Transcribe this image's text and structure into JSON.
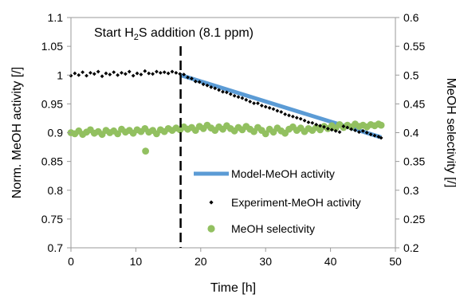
{
  "chart_data": {
    "type": "scatter",
    "xlabel": "Time [h]",
    "ylabel_left": "Norm. MeOH activity [/]",
    "ylabel_right": "MeOH selectivity [/]",
    "xlim": [
      0,
      50
    ],
    "ylim_left": [
      0.7,
      1.1
    ],
    "ylim_right": [
      0.2,
      0.6
    ],
    "x_ticks": [
      "0",
      "10",
      "20",
      "30",
      "40",
      "50"
    ],
    "y_ticks_left": [
      "0.7",
      "0.75",
      "0.8",
      "0.85",
      "0.9",
      "0.95",
      "1",
      "1.05",
      "1.1"
    ],
    "y_ticks_right": [
      "0.2",
      "0.25",
      "0.3",
      "0.35",
      "0.4",
      "0.45",
      "0.5",
      "0.55",
      "0.6"
    ],
    "grid": false,
    "legend_position": "bottom-right",
    "annotation": {
      "text_before": "Start H",
      "subscript": "2",
      "text_after": "S addition (8.1 ppm)",
      "x": 16.9
    },
    "series": [
      {
        "name": "Model-MeOH activity",
        "type": "line",
        "axis": "left",
        "color": "#5b9bd5",
        "x": [
          16.9,
          47.8
        ],
        "y": [
          1.0,
          0.892
        ]
      },
      {
        "name": "Experiment-MeOH activity",
        "type": "scatter",
        "marker": "diamond",
        "axis": "left",
        "color": "#000000",
        "x": [
          0.0,
          0.6,
          1.2,
          1.8,
          2.4,
          3.0,
          3.6,
          4.2,
          4.8,
          5.4,
          6.0,
          6.6,
          7.2,
          7.8,
          8.4,
          9.0,
          9.6,
          10.2,
          10.8,
          11.4,
          12.0,
          12.6,
          13.2,
          13.8,
          14.4,
          15.0,
          15.6,
          16.2,
          16.8,
          17.4,
          18.0,
          18.6,
          19.2,
          19.8,
          20.4,
          21.0,
          21.6,
          22.2,
          22.8,
          23.4,
          24.0,
          24.6,
          25.2,
          25.8,
          26.4,
          27.0,
          27.6,
          28.2,
          28.8,
          29.4,
          30.0,
          30.6,
          31.2,
          31.8,
          32.4,
          33.0,
          33.6,
          34.2,
          34.8,
          35.4,
          36.0,
          36.6,
          37.2,
          37.8,
          38.4,
          39.0,
          39.6,
          40.2,
          40.8,
          41.4,
          42.0,
          42.6,
          43.2,
          43.8,
          44.4,
          45.0,
          45.6,
          46.2,
          46.8,
          47.4,
          47.8
        ],
        "y": [
          0.999,
          1.003,
          1.0,
          1.005,
          0.999,
          1.004,
          1.002,
          1.006,
          0.998,
          1.003,
          1.001,
          1.005,
          1.0,
          1.004,
          1.002,
          1.006,
          0.999,
          1.003,
          1.001,
          1.007,
          1.003,
          1.002,
          1.006,
          1.004,
          1.005,
          1.003,
          1.006,
          1.004,
          1.002,
          1.001,
          0.996,
          0.994,
          0.989,
          0.988,
          0.984,
          0.982,
          0.979,
          0.977,
          0.974,
          0.971,
          0.97,
          0.967,
          0.964,
          0.962,
          0.96,
          0.957,
          0.954,
          0.951,
          0.951,
          0.947,
          0.945,
          0.943,
          0.941,
          0.938,
          0.936,
          0.932,
          0.93,
          0.928,
          0.926,
          0.924,
          0.921,
          0.918,
          0.917,
          0.914,
          0.912,
          0.91,
          0.907,
          0.905,
          0.903,
          0.901,
          0.911,
          0.909,
          0.906,
          0.904,
          0.901,
          0.903,
          0.9,
          0.897,
          0.895,
          0.893,
          0.891
        ]
      },
      {
        "name": "MeOH selectivity",
        "type": "scatter",
        "marker": "circle",
        "axis": "right",
        "color": "#92c060",
        "x": [
          0.0,
          0.6,
          1.2,
          1.8,
          2.4,
          3.0,
          3.6,
          4.2,
          4.8,
          5.4,
          6.0,
          6.6,
          7.2,
          7.8,
          8.4,
          9.0,
          9.6,
          10.2,
          10.8,
          11.4,
          12.0,
          12.6,
          13.2,
          13.8,
          14.4,
          15.0,
          15.6,
          16.2,
          16.8,
          17.4,
          18.0,
          18.6,
          19.2,
          19.8,
          20.4,
          21.0,
          21.6,
          22.2,
          22.8,
          23.4,
          24.0,
          24.6,
          25.2,
          25.8,
          26.4,
          27.0,
          27.6,
          28.2,
          28.8,
          29.4,
          30.0,
          30.6,
          31.2,
          31.8,
          32.4,
          33.0,
          33.6,
          34.2,
          34.8,
          35.4,
          36.0,
          36.6,
          37.2,
          37.8,
          38.4,
          39.0,
          39.6,
          40.2,
          40.8,
          41.4,
          42.0,
          42.6,
          43.2,
          43.8,
          44.4,
          45.0,
          45.6,
          46.2,
          46.8,
          47.4,
          47.8,
          11.5
        ],
        "y": [
          0.4,
          0.398,
          0.403,
          0.397,
          0.401,
          0.405,
          0.399,
          0.402,
          0.397,
          0.404,
          0.4,
          0.403,
          0.398,
          0.406,
          0.401,
          0.404,
          0.399,
          0.405,
          0.402,
          0.407,
          0.401,
          0.404,
          0.398,
          0.405,
          0.402,
          0.407,
          0.404,
          0.408,
          0.405,
          0.41,
          0.406,
          0.409,
          0.404,
          0.411,
          0.407,
          0.413,
          0.408,
          0.404,
          0.41,
          0.406,
          0.412,
          0.407,
          0.403,
          0.409,
          0.405,
          0.411,
          0.406,
          0.402,
          0.409,
          0.404,
          0.398,
          0.406,
          0.401,
          0.408,
          0.403,
          0.399,
          0.406,
          0.41,
          0.404,
          0.408,
          0.402,
          0.407,
          0.404,
          0.409,
          0.405,
          0.411,
          0.407,
          0.412,
          0.408,
          0.414,
          0.409,
          0.413,
          0.41,
          0.415,
          0.411,
          0.413,
          0.41,
          0.414,
          0.412,
          0.415,
          0.413,
          0.368
        ]
      }
    ]
  }
}
